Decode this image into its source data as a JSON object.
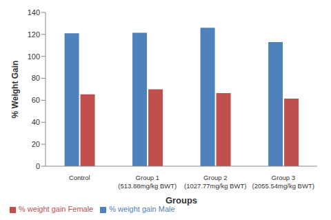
{
  "chart_data": {
    "type": "bar",
    "x_label": "Groups",
    "y_label": "% Weight Gain",
    "categories": [
      "Control",
      "Group 1\n(513.88mg/kg BWT)",
      "Group 2\n(1027.77mg/kg BWT)",
      "Group 3\n(2055.54mg/kg BWT)"
    ],
    "series": [
      {
        "name": "% weight gain Male",
        "color": "#4f81bd",
        "values": [
          121,
          121.5,
          126,
          113
        ]
      },
      {
        "name": "% weight gain Female",
        "color": "#c0504d",
        "values": [
          65.5,
          70,
          66.5,
          61.5
        ]
      }
    ],
    "ylim": [
      0,
      140
    ],
    "yticks": [
      0,
      20,
      40,
      60,
      80,
      100,
      120,
      140
    ],
    "grid": false,
    "legend": "bottom left"
  }
}
